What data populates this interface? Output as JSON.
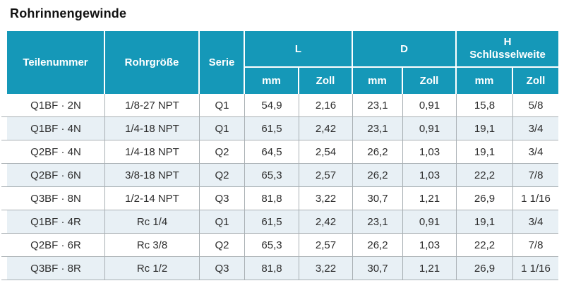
{
  "page": {
    "title": "Rohrinnengewinde"
  },
  "table": {
    "columns": [
      {
        "key": "teilenummer",
        "label": "Teilenummer"
      },
      {
        "key": "rohrgroesse",
        "label": "Rohrgröße"
      },
      {
        "key": "serie",
        "label": "Serie"
      }
    ],
    "groups": [
      {
        "label": "L",
        "sublabel": "",
        "sub": [
          "mm",
          "Zoll"
        ]
      },
      {
        "label": "D",
        "sublabel": "",
        "sub": [
          "mm",
          "Zoll"
        ]
      },
      {
        "label": "H",
        "sublabel": "Schlüsselweite",
        "sub": [
          "mm",
          "Zoll"
        ]
      }
    ],
    "rows": [
      [
        "Q1BF · 2N",
        "1/8-27 NPT",
        "Q1",
        "54,9",
        "2,16",
        "23,1",
        "0,91",
        "15,8",
        "5/8"
      ],
      [
        "Q1BF · 4N",
        "1/4-18 NPT",
        "Q1",
        "61,5",
        "2,42",
        "23,1",
        "0,91",
        "19,1",
        "3/4"
      ],
      [
        "Q2BF · 4N",
        "1/4-18 NPT",
        "Q2",
        "64,5",
        "2,54",
        "26,2",
        "1,03",
        "19,1",
        "3/4"
      ],
      [
        "Q2BF · 6N",
        "3/8-18 NPT",
        "Q2",
        "65,3",
        "2,57",
        "26,2",
        "1,03",
        "22,2",
        "7/8"
      ],
      [
        "Q3BF · 8N",
        "1/2-14 NPT",
        "Q3",
        "81,8",
        "3,22",
        "30,7",
        "1,21",
        "26,9",
        "1 1/16"
      ],
      [
        "Q1BF · 4R",
        "Rc 1/4",
        "Q1",
        "61,5",
        "2,42",
        "23,1",
        "0,91",
        "19,1",
        "3/4"
      ],
      [
        "Q2BF · 6R",
        "Rc 3/8",
        "Q2",
        "65,3",
        "2,57",
        "26,2",
        "1,03",
        "22,2",
        "7/8"
      ],
      [
        "Q3BF · 8R",
        "Rc 1/2",
        "Q3",
        "81,8",
        "3,22",
        "30,7",
        "1,21",
        "26,9",
        "1 1/16"
      ]
    ],
    "colors": {
      "header_bg": "#1598B8",
      "header_text": "#FFFFFF",
      "row_alt_bg": "#E8F0F5",
      "grid_line": "#A9B0B4",
      "body_text": "#2D2D2D"
    }
  }
}
